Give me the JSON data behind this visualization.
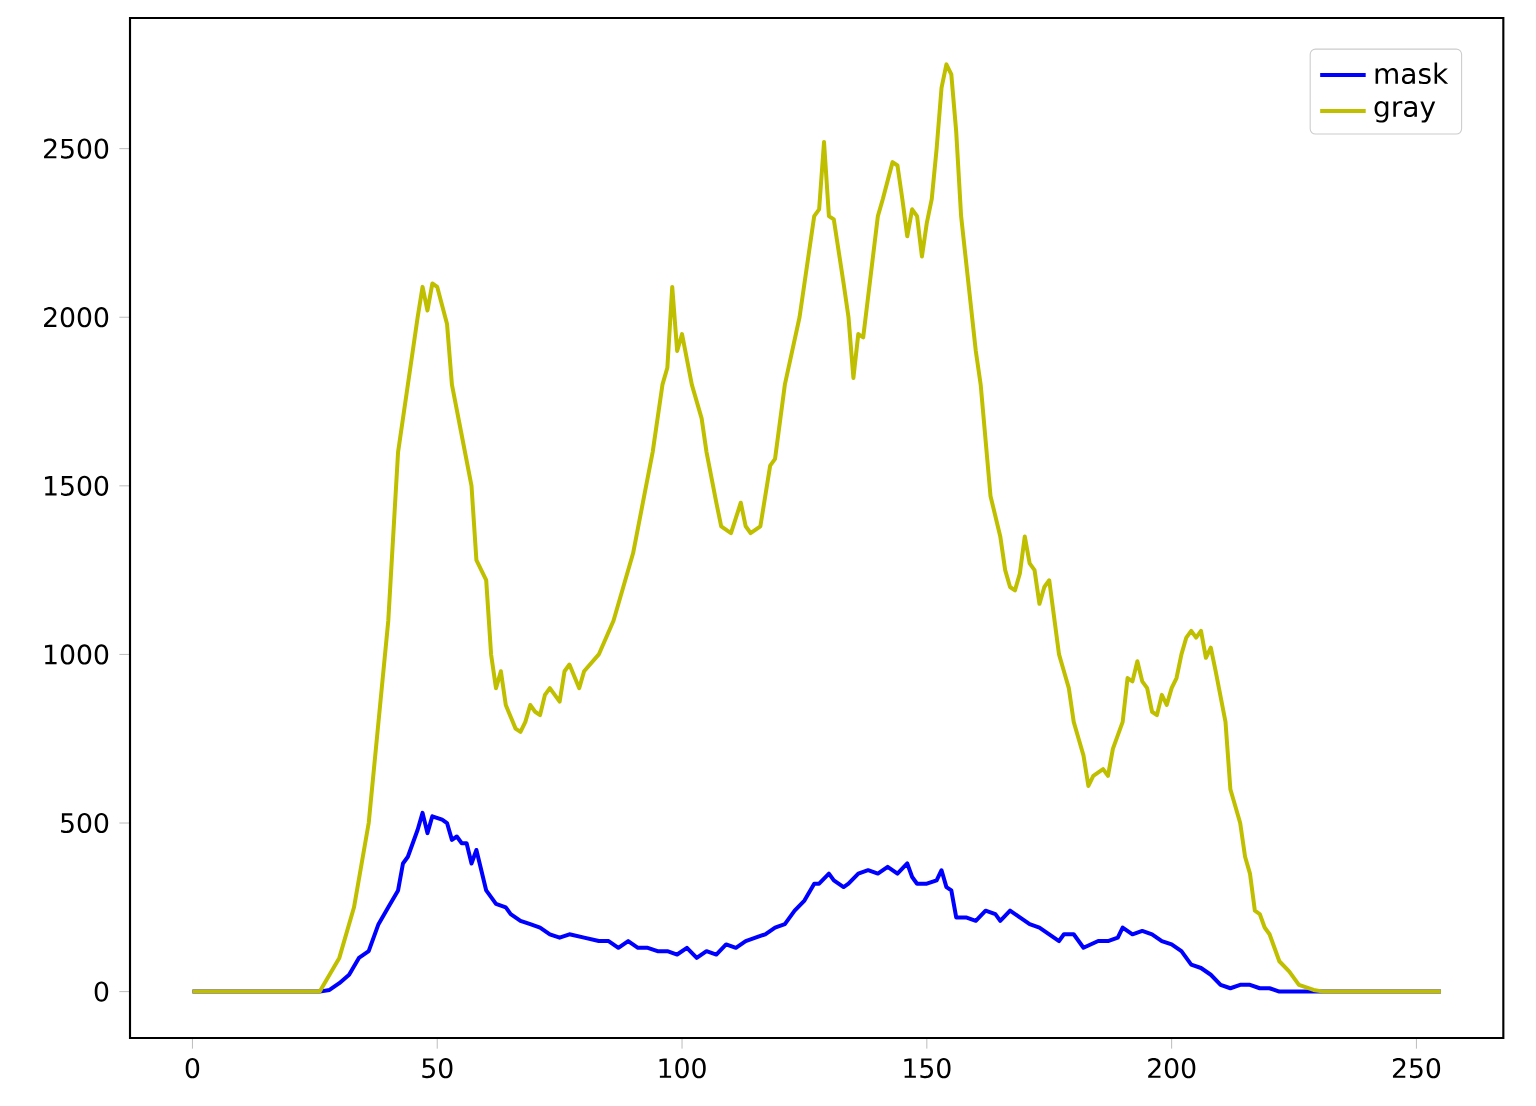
{
  "chart_data": {
    "type": "line",
    "xlim": [
      -12.75,
      267.75
    ],
    "ylim": [
      -137.5,
      2887.5
    ],
    "xticks": [
      0,
      50,
      100,
      150,
      200,
      250
    ],
    "yticks": [
      0,
      500,
      1000,
      1500,
      2000,
      2500
    ],
    "legend": "top right",
    "grid": false,
    "marker": "none",
    "line_style": "solid",
    "series": [
      {
        "name": "mask",
        "color": "#0000ff",
        "x": [
          0,
          26,
          28,
          30,
          32,
          34,
          36,
          38,
          40,
          42,
          43,
          44,
          46,
          47,
          48,
          49,
          51,
          52,
          53,
          54,
          55,
          56,
          57,
          58,
          60,
          62,
          64,
          65,
          67,
          69,
          71,
          73,
          75,
          77,
          80,
          83,
          85,
          87,
          89,
          91,
          93,
          95,
          97,
          99,
          101,
          103,
          105,
          107,
          109,
          111,
          113,
          115,
          117,
          119,
          121,
          123,
          125,
          127,
          128,
          130,
          131,
          133,
          134,
          136,
          138,
          140,
          142,
          144,
          146,
          147,
          148,
          150,
          152,
          153,
          154,
          155,
          156,
          158,
          160,
          162,
          164,
          165,
          167,
          169,
          171,
          173,
          175,
          177,
          178,
          180,
          182,
          185,
          187,
          189,
          190,
          192,
          194,
          196,
          198,
          200,
          202,
          204,
          206,
          208,
          210,
          212,
          214,
          216,
          218,
          220,
          222,
          255
        ],
        "values": [
          0,
          0,
          5,
          25,
          50,
          100,
          120,
          200,
          250,
          300,
          380,
          400,
          480,
          530,
          470,
          520,
          510,
          500,
          450,
          460,
          440,
          440,
          380,
          420,
          300,
          260,
          250,
          230,
          210,
          200,
          190,
          170,
          160,
          170,
          160,
          150,
          150,
          130,
          150,
          130,
          130,
          120,
          120,
          110,
          130,
          100,
          120,
          110,
          140,
          130,
          150,
          160,
          170,
          190,
          200,
          240,
          270,
          320,
          320,
          350,
          330,
          310,
          320,
          350,
          360,
          350,
          370,
          350,
          380,
          340,
          320,
          320,
          330,
          360,
          310,
          300,
          220,
          220,
          210,
          240,
          230,
          210,
          240,
          220,
          200,
          190,
          170,
          150,
          170,
          170,
          130,
          150,
          150,
          160,
          190,
          170,
          180,
          170,
          150,
          140,
          120,
          80,
          70,
          50,
          20,
          10,
          20,
          20,
          10,
          10,
          0,
          0
        ]
      },
      {
        "name": "gray",
        "color": "#bfbf00",
        "x": [
          0,
          26,
          30,
          33,
          36,
          38,
          40,
          42,
          44,
          46,
          47,
          48,
          49,
          50,
          52,
          53,
          55,
          57,
          58,
          60,
          61,
          62,
          63,
          64,
          66,
          67,
          68,
          69,
          70,
          71,
          72,
          73,
          75,
          76,
          77,
          79,
          80,
          83,
          86,
          88,
          90,
          92,
          94,
          96,
          97,
          98,
          99,
          100,
          102,
          104,
          105,
          107,
          108,
          110,
          112,
          113,
          114,
          116,
          118,
          119,
          121,
          124,
          127,
          128,
          129,
          130,
          131,
          133,
          134,
          135,
          136,
          137,
          140,
          141,
          143,
          144,
          145,
          146,
          147,
          148,
          149,
          150,
          151,
          152,
          153,
          154,
          155,
          156,
          157,
          160,
          161,
          163,
          165,
          166,
          167,
          168,
          169,
          170,
          171,
          172,
          173,
          174,
          175,
          177,
          178,
          179,
          180,
          181,
          182,
          183,
          184,
          186,
          187,
          188,
          190,
          191,
          192,
          193,
          194,
          195,
          196,
          197,
          198,
          199,
          200,
          201,
          202,
          203,
          204,
          205,
          206,
          207,
          208,
          209,
          211,
          212,
          214,
          215,
          216,
          217,
          218,
          219,
          220,
          222,
          224,
          226,
          229,
          231,
          255
        ],
        "values": [
          0,
          0,
          100,
          250,
          500,
          800,
          1100,
          1600,
          1800,
          2000,
          2090,
          2020,
          2100,
          2090,
          1980,
          1800,
          1650,
          1500,
          1280,
          1220,
          1000,
          900,
          950,
          850,
          780,
          770,
          800,
          850,
          830,
          820,
          880,
          900,
          860,
          950,
          970,
          900,
          950,
          1000,
          1100,
          1200,
          1300,
          1450,
          1600,
          1800,
          1850,
          2090,
          1900,
          1950,
          1800,
          1700,
          1600,
          1450,
          1380,
          1360,
          1450,
          1380,
          1360,
          1380,
          1560,
          1580,
          1800,
          2000,
          2300,
          2320,
          2520,
          2300,
          2290,
          2100,
          2000,
          1820,
          1950,
          1940,
          2300,
          2350,
          2460,
          2450,
          2350,
          2240,
          2320,
          2300,
          2180,
          2280,
          2350,
          2500,
          2680,
          2750,
          2720,
          2550,
          2300,
          1900,
          1800,
          1470,
          1350,
          1250,
          1200,
          1190,
          1240,
          1350,
          1270,
          1250,
          1150,
          1200,
          1220,
          1000,
          950,
          900,
          800,
          750,
          700,
          610,
          640,
          660,
          640,
          720,
          800,
          930,
          920,
          980,
          920,
          900,
          830,
          820,
          880,
          850,
          900,
          930,
          1000,
          1050,
          1070,
          1050,
          1070,
          990,
          1020,
          950,
          800,
          600,
          500,
          400,
          350,
          240,
          230,
          190,
          170,
          90,
          60,
          20,
          5,
          0,
          0
        ]
      }
    ]
  }
}
